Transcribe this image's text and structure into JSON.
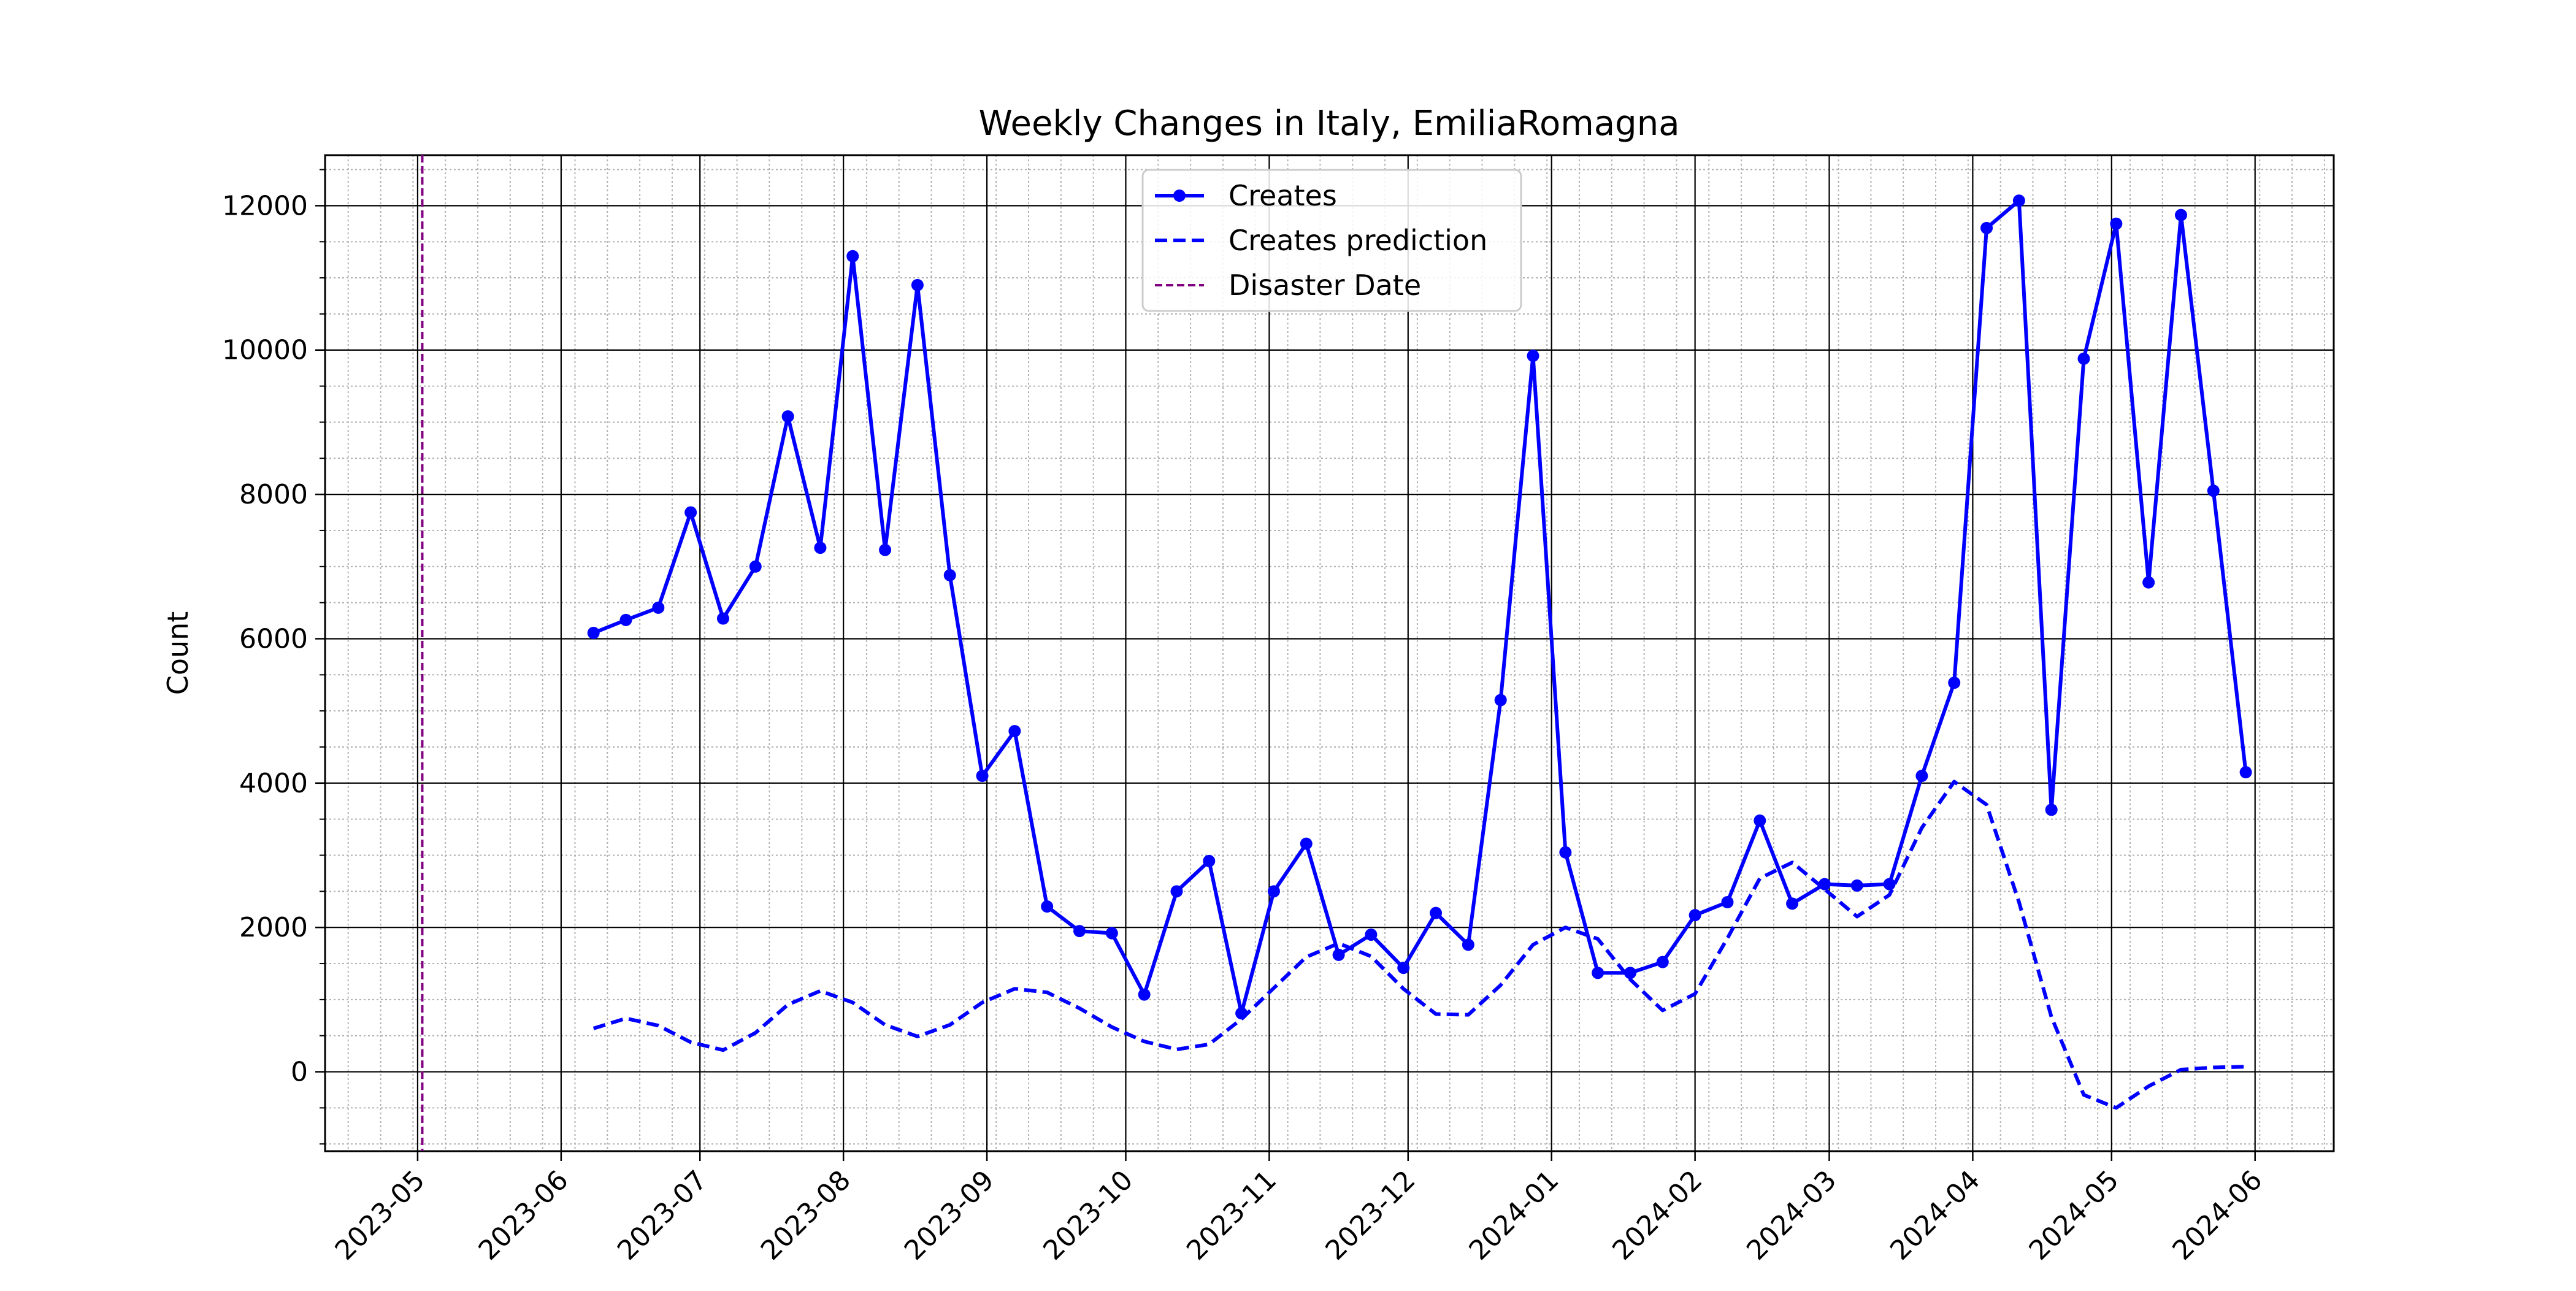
{
  "chart_data": {
    "type": "line",
    "title": "Weekly Changes in Italy, EmiliaRomagna",
    "xlabel": "",
    "ylabel": "Count",
    "x_axis": {
      "type": "date",
      "range": [
        "2023-04-11",
        "2024-06-18"
      ],
      "major_ticks": [
        "2023-05-01",
        "2023-06-01",
        "2023-07-01",
        "2023-08-01",
        "2023-09-01",
        "2023-10-01",
        "2023-11-01",
        "2023-12-01",
        "2024-01-01",
        "2024-02-01",
        "2024-03-01",
        "2024-04-01",
        "2024-05-01",
        "2024-06-01"
      ],
      "tick_labels": [
        "2023-05",
        "2023-06",
        "2023-07",
        "2023-08",
        "2023-09",
        "2023-10",
        "2023-11",
        "2023-12",
        "2024-01",
        "2024-02",
        "2024-03",
        "2024-04",
        "2024-05",
        "2024-06"
      ],
      "tick_label_rotation": 45
    },
    "y_axis": {
      "range": [
        -1100,
        12700
      ],
      "major_ticks": [
        0,
        2000,
        4000,
        6000,
        8000,
        10000,
        12000
      ],
      "tick_labels": [
        "0",
        "2000",
        "4000",
        "6000",
        "8000",
        "10000",
        "12000"
      ]
    },
    "grid": "major solid, minor dotted",
    "legend": {
      "position": "top-center",
      "entries": [
        "Creates",
        "Creates prediction",
        "Disaster Date"
      ]
    },
    "series": [
      {
        "name": "Creates",
        "style": "solid line with circle markers",
        "color": "#0000ff",
        "points": [
          [
            "2023-06-08",
            6080
          ],
          [
            "2023-06-15",
            6260
          ],
          [
            "2023-06-22",
            6430
          ],
          [
            "2023-06-29",
            7750
          ],
          [
            "2023-07-06",
            6280
          ],
          [
            "2023-07-13",
            7000
          ],
          [
            "2023-07-20",
            9080
          ],
          [
            "2023-07-27",
            7260
          ],
          [
            "2023-08-03",
            11300
          ],
          [
            "2023-08-10",
            7230
          ],
          [
            "2023-08-17",
            10900
          ],
          [
            "2023-08-24",
            6880
          ],
          [
            "2023-08-31",
            4100
          ],
          [
            "2023-09-07",
            4720
          ],
          [
            "2023-09-14",
            2290
          ],
          [
            "2023-09-21",
            1950
          ],
          [
            "2023-09-28",
            1920
          ],
          [
            "2023-10-05",
            1070
          ],
          [
            "2023-10-12",
            2500
          ],
          [
            "2023-10-19",
            2920
          ],
          [
            "2023-10-26",
            810
          ],
          [
            "2023-11-02",
            2500
          ],
          [
            "2023-11-09",
            3160
          ],
          [
            "2023-11-16",
            1620
          ],
          [
            "2023-11-23",
            1900
          ],
          [
            "2023-11-30",
            1440
          ],
          [
            "2023-12-07",
            2200
          ],
          [
            "2023-12-14",
            1760
          ],
          [
            "2023-12-21",
            5150
          ],
          [
            "2023-12-28",
            9920
          ],
          [
            "2024-01-04",
            3040
          ],
          [
            "2024-01-11",
            1370
          ],
          [
            "2024-01-18",
            1370
          ],
          [
            "2024-01-25",
            1520
          ],
          [
            "2024-02-01",
            2170
          ],
          [
            "2024-02-08",
            2350
          ],
          [
            "2024-02-15",
            3480
          ],
          [
            "2024-02-22",
            2330
          ],
          [
            "2024-02-29",
            2600
          ],
          [
            "2024-03-07",
            2580
          ],
          [
            "2024-03-14",
            2600
          ],
          [
            "2024-03-21",
            4100
          ],
          [
            "2024-03-28",
            5390
          ],
          [
            "2024-04-04",
            11690
          ],
          [
            "2024-04-11",
            12070
          ],
          [
            "2024-04-18",
            3630
          ],
          [
            "2024-04-25",
            9880
          ],
          [
            "2024-05-02",
            11750
          ],
          [
            "2024-05-09",
            6780
          ],
          [
            "2024-05-16",
            11870
          ],
          [
            "2024-05-23",
            8050
          ],
          [
            "2024-05-30",
            4150
          ]
        ]
      },
      {
        "name": "Creates prediction",
        "style": "dashed line",
        "color": "#0000ff",
        "points": [
          [
            "2023-06-08",
            600
          ],
          [
            "2023-06-15",
            740
          ],
          [
            "2023-06-22",
            640
          ],
          [
            "2023-06-29",
            410
          ],
          [
            "2023-07-06",
            300
          ],
          [
            "2023-07-13",
            540
          ],
          [
            "2023-07-20",
            930
          ],
          [
            "2023-07-27",
            1120
          ],
          [
            "2023-08-03",
            960
          ],
          [
            "2023-08-10",
            650
          ],
          [
            "2023-08-17",
            490
          ],
          [
            "2023-08-24",
            650
          ],
          [
            "2023-08-31",
            960
          ],
          [
            "2023-09-07",
            1150
          ],
          [
            "2023-09-14",
            1100
          ],
          [
            "2023-09-21",
            880
          ],
          [
            "2023-09-28",
            620
          ],
          [
            "2023-10-05",
            420
          ],
          [
            "2023-10-12",
            310
          ],
          [
            "2023-10-19",
            380
          ],
          [
            "2023-10-26",
            730
          ],
          [
            "2023-11-02",
            1160
          ],
          [
            "2023-11-09",
            1590
          ],
          [
            "2023-11-16",
            1780
          ],
          [
            "2023-11-23",
            1600
          ],
          [
            "2023-11-30",
            1150
          ],
          [
            "2023-12-07",
            800
          ],
          [
            "2023-12-14",
            790
          ],
          [
            "2023-12-21",
            1200
          ],
          [
            "2023-12-28",
            1760
          ],
          [
            "2024-01-04",
            2000
          ],
          [
            "2024-01-11",
            1840
          ],
          [
            "2024-01-18",
            1280
          ],
          [
            "2024-01-25",
            850
          ],
          [
            "2024-02-01",
            1080
          ],
          [
            "2024-02-08",
            1850
          ],
          [
            "2024-02-15",
            2680
          ],
          [
            "2024-02-22",
            2900
          ],
          [
            "2024-02-29",
            2530
          ],
          [
            "2024-03-07",
            2150
          ],
          [
            "2024-03-14",
            2450
          ],
          [
            "2024-03-21",
            3380
          ],
          [
            "2024-03-28",
            4020
          ],
          [
            "2024-04-04",
            3700
          ],
          [
            "2024-04-11",
            2350
          ],
          [
            "2024-04-18",
            760
          ],
          [
            "2024-04-25",
            -320
          ],
          [
            "2024-05-02",
            -500
          ],
          [
            "2024-05-09",
            -200
          ],
          [
            "2024-05-16",
            30
          ],
          [
            "2024-05-23",
            60
          ],
          [
            "2024-05-30",
            70
          ]
        ]
      },
      {
        "name": "Disaster Date",
        "style": "vertical dashed line",
        "color": "#800080",
        "date": "2023-05-02"
      }
    ]
  }
}
